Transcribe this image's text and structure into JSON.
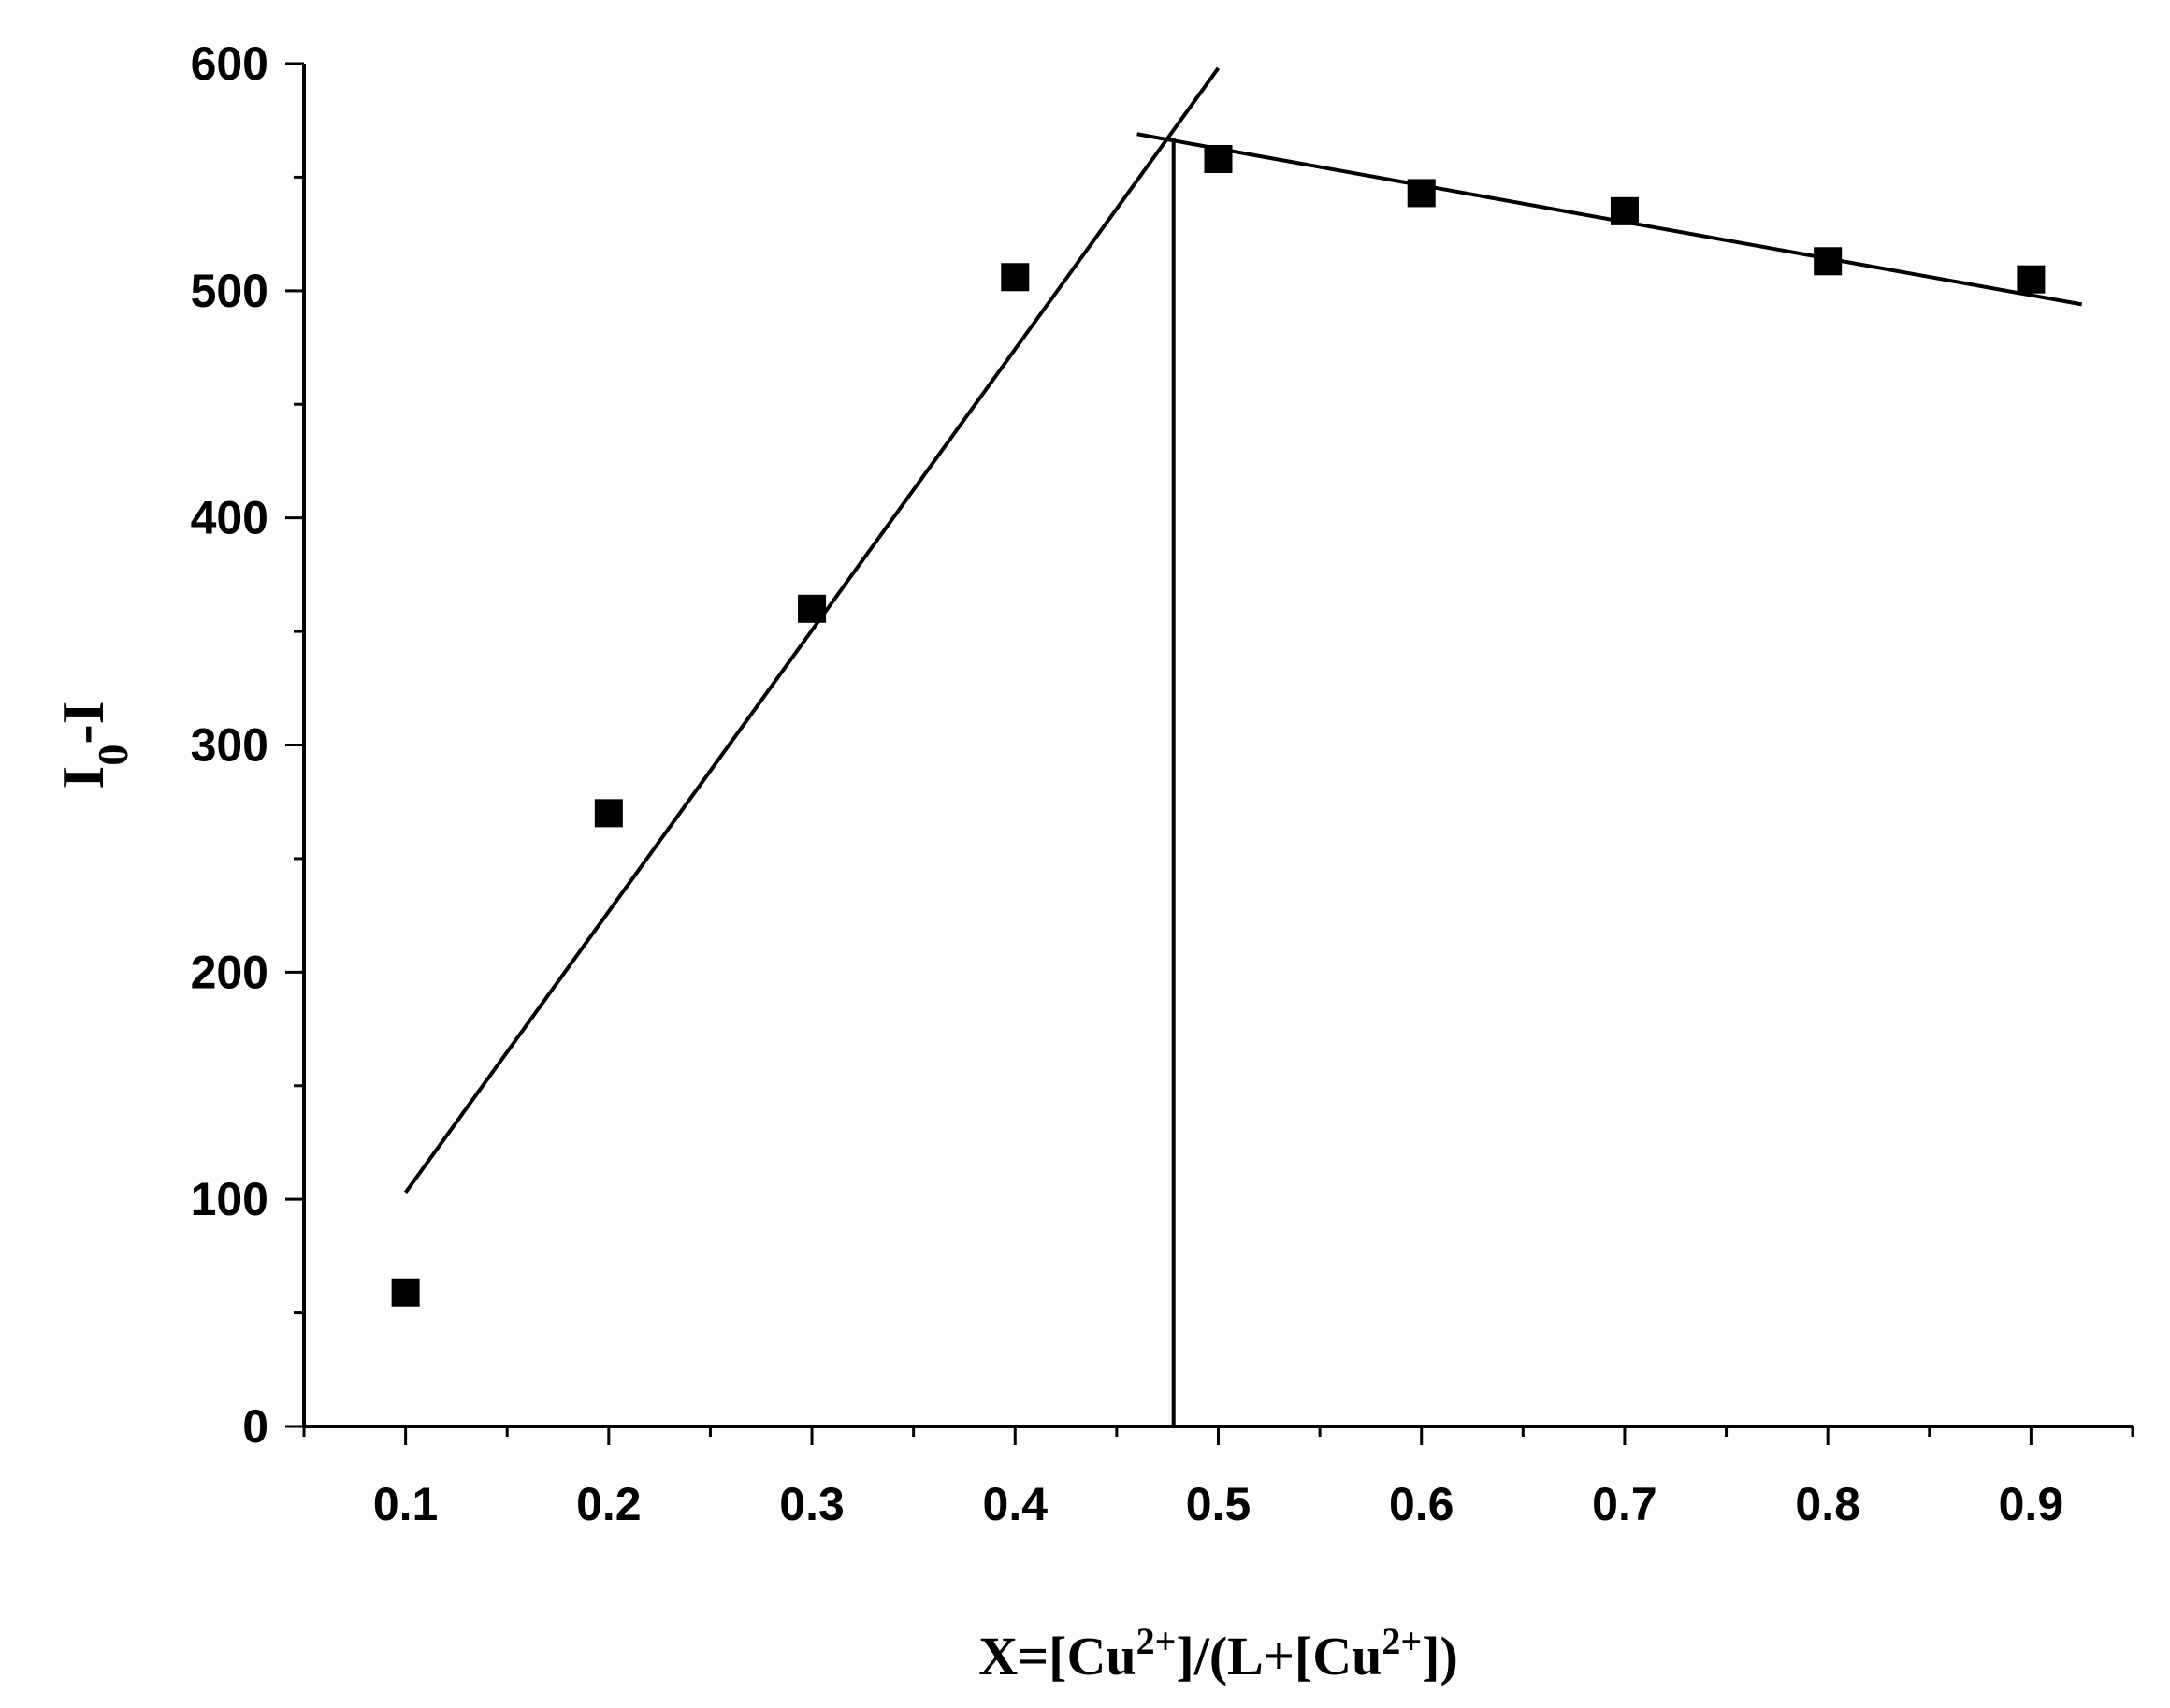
{
  "chart_data": {
    "type": "scatter",
    "title": "",
    "xlabel": {
      "parts": [
        {
          "text": "X=[Cu",
          "sup": false
        },
        {
          "text": "2+",
          "sup": true
        },
        {
          "text": "]/(L+[Cu",
          "sup": false
        },
        {
          "text": "2+",
          "sup": true
        },
        {
          "text": "])",
          "sup": false
        }
      ]
    },
    "ylabel": {
      "parts": [
        {
          "text": "I",
          "sub": false
        },
        {
          "text": "0",
          "sub": true
        },
        {
          "text": "-I",
          "sub": false
        }
      ]
    },
    "xlim": [
      0.05,
      0.95
    ],
    "ylim": [
      0,
      600
    ],
    "x_ticks": [
      "0.1",
      "0.2",
      "0.3",
      "0.4",
      "0.5",
      "0.6",
      "0.7",
      "0.8",
      "0.9"
    ],
    "y_ticks": [
      "0",
      "100",
      "200",
      "300",
      "400",
      "500",
      "600"
    ],
    "grid": false,
    "series": [
      {
        "marker": "square",
        "color": "#000000",
        "points": [
          {
            "x": 0.1,
            "y": 59
          },
          {
            "x": 0.2,
            "y": 270
          },
          {
            "x": 0.3,
            "y": 360
          },
          {
            "x": 0.4,
            "y": 506
          },
          {
            "x": 0.5,
            "y": 558
          },
          {
            "x": 0.6,
            "y": 543
          },
          {
            "x": 0.7,
            "y": 535
          },
          {
            "x": 0.8,
            "y": 513
          },
          {
            "x": 0.9,
            "y": 505
          }
        ]
      }
    ],
    "fit_lines": [
      {
        "from": {
          "x": 0.1,
          "y": 103
        },
        "to": {
          "x": 0.5,
          "y": 598
        }
      },
      {
        "from": {
          "x": 0.46,
          "y": 569
        },
        "to": {
          "x": 0.925,
          "y": 494
        }
      }
    ],
    "reference_lines": [
      {
        "orientation": "vertical",
        "x": 0.478,
        "y_from": 0,
        "y_to": 567
      }
    ]
  }
}
